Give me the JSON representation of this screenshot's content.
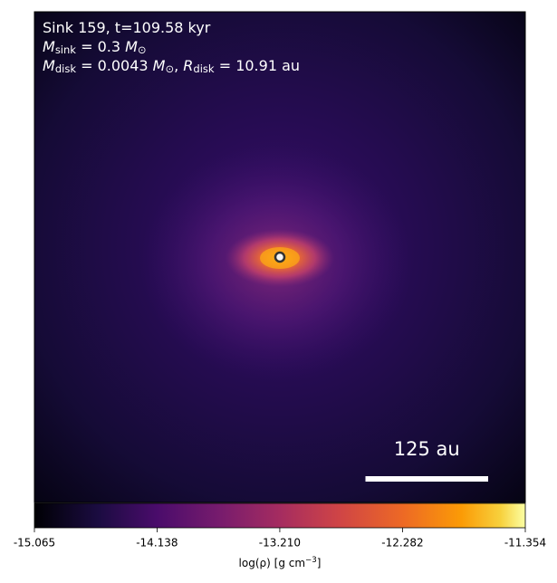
{
  "chart_data": {
    "type": "density-map",
    "annotations": [
      [
        {
          "text": "Sink 159, t=109.58 kyr",
          "style": "normal"
        }
      ],
      [
        {
          "text": "M",
          "style": "italic"
        },
        {
          "text": "sink",
          "style": "sub"
        },
        {
          "text": " = 0.3 ",
          "style": "normal"
        },
        {
          "text": "M",
          "style": "italic"
        },
        {
          "text": "⊙",
          "style": "sub"
        }
      ],
      [
        {
          "text": "M",
          "style": "italic"
        },
        {
          "text": "disk",
          "style": "sub"
        },
        {
          "text": " = 0.0043 ",
          "style": "normal"
        },
        {
          "text": "M",
          "style": "italic"
        },
        {
          "text": "⊙",
          "style": "sub"
        },
        {
          "text": ", ",
          "style": "normal"
        },
        {
          "text": "R",
          "style": "italic"
        },
        {
          "text": "disk",
          "style": "sub"
        },
        {
          "text": " = 10.91 au",
          "style": "normal"
        }
      ]
    ],
    "xlim": [
      -250,
      250
    ],
    "ylim": [
      -250,
      250
    ],
    "sink": {
      "x": 0,
      "y": 0
    },
    "scale_bar": {
      "length": 125,
      "label": "125 au"
    },
    "colorbar": {
      "lim": [
        -15.065,
        -11.354
      ],
      "ticks": [
        -15.065,
        -14.138,
        {
          "value": -13.21,
          "label": "-13.210"
        },
        -12.282,
        -11.354
      ],
      "label": [
        {
          "text": "log(ρ) [g cm",
          "style": "normal"
        },
        {
          "text": "−3",
          "style": "sup"
        },
        {
          "text": "]",
          "style": "normal"
        }
      ]
    }
  }
}
